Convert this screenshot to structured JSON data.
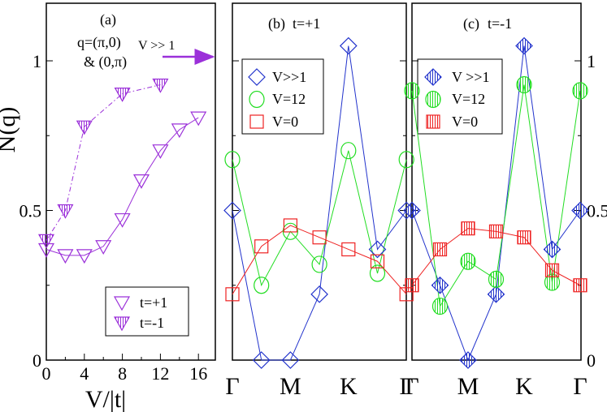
{
  "figure": {
    "y_axis_label": "N(q)",
    "x_axis_label": "V/|t|",
    "colors": {
      "purple": "#9b30d9",
      "blue": "#2233cc",
      "green": "#22dd22",
      "red": "#ee2222"
    }
  },
  "chart_data": [
    {
      "type": "line",
      "panel_label": "(a)",
      "annotation_q": "q=(π,0)",
      "annotation_q2": "& (0,π)",
      "arrow_label": "V >> 1",
      "xlabel": "V/|t|",
      "ylabel": "N(q)",
      "xlim": [
        0,
        17
      ],
      "ylim": [
        0,
        1.2
      ],
      "x_ticks": [
        0,
        4,
        8,
        12,
        16
      ],
      "y_ticks": [
        0,
        0.5,
        1
      ],
      "y_tick_labels": [
        "0",
        "0.5",
        "1"
      ],
      "grid": false,
      "legend_position": "bottom-right",
      "series": [
        {
          "name": "t=+1",
          "marker": "open-down-triangle",
          "line_style": "solid",
          "x": [
            0,
            2,
            4,
            6,
            8,
            10,
            12,
            14,
            16
          ],
          "y": [
            0.37,
            0.35,
            0.35,
            0.38,
            0.47,
            0.6,
            0.7,
            0.77,
            0.81
          ]
        },
        {
          "name": "t=-1",
          "marker": "hatched-down-triangle",
          "line_style": "dash-dot",
          "x": [
            0,
            2,
            4,
            8,
            12
          ],
          "y": [
            0.4,
            0.5,
            0.78,
            0.89,
            0.92
          ]
        }
      ]
    },
    {
      "type": "line",
      "panel_label": "(b)",
      "title": "t=+1",
      "categories": [
        "Γ",
        "",
        "M",
        "",
        "K",
        "",
        "Γ"
      ],
      "ylim": [
        0,
        1.2
      ],
      "legend_position": "top-left",
      "series": [
        {
          "name": "V>>1",
          "marker": "open-diamond",
          "color": "#2233cc",
          "values": [
            0.5,
            0.0,
            0.0,
            0.22,
            1.05,
            0.37,
            0.5
          ]
        },
        {
          "name": "V=12",
          "marker": "open-circle",
          "color": "#22dd22",
          "values": [
            0.67,
            0.25,
            0.43,
            0.32,
            0.7,
            0.29,
            0.67
          ]
        },
        {
          "name": "V=0",
          "marker": "open-square",
          "color": "#ee2222",
          "values": [
            0.22,
            0.38,
            0.45,
            0.41,
            0.37,
            0.33,
            0.22
          ]
        }
      ],
      "x_positions": [
        0,
        1,
        2,
        3,
        4,
        5,
        6
      ]
    },
    {
      "type": "line",
      "panel_label": "(c)",
      "title": "t=-1",
      "categories": [
        "Γ",
        "",
        "M",
        "",
        "K",
        "",
        "Γ"
      ],
      "ylim": [
        0,
        1.2
      ],
      "y_ticks": [
        0,
        0.5,
        1
      ],
      "y_tick_labels": [
        "0",
        "0.5",
        "1"
      ],
      "legend_position": "top-left",
      "series": [
        {
          "name": "V >>1",
          "marker": "hatched-diamond",
          "color": "#2233cc",
          "values": [
            0.5,
            0.25,
            0.0,
            0.22,
            1.05,
            0.37,
            0.5
          ]
        },
        {
          "name": "V=12",
          "marker": "hatched-circle",
          "color": "#22dd22",
          "values": [
            0.9,
            0.18,
            0.33,
            0.27,
            0.92,
            0.26,
            0.9
          ]
        },
        {
          "name": "V=0",
          "marker": "hatched-square",
          "color": "#ee2222",
          "values": [
            0.25,
            0.37,
            0.44,
            0.43,
            0.41,
            0.3,
            0.25
          ]
        }
      ],
      "x_positions": [
        0,
        1,
        2,
        3,
        4,
        5,
        6
      ]
    }
  ]
}
